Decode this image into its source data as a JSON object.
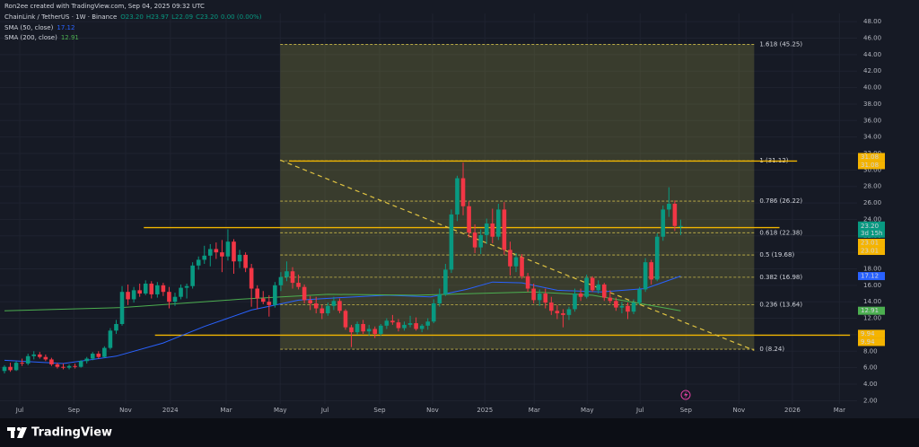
{
  "header": {
    "title": "Ron2ee created with TradingView.com, Sep 04, 2025 09:32 UTC"
  },
  "footer": {
    "brand": "TradingView"
  },
  "chart_data": {
    "type": "candlestick",
    "symbol": "ChainLink / TetherUS · 1W · Binance",
    "ohlc_legend": [
      "O23.20",
      "H23.97",
      "L22.09",
      "C23.20",
      "0.00 (0.00%)"
    ],
    "up_color": "#089981",
    "down_color": "#f23645",
    "xlim": [
      -0.76,
      145
    ],
    "xticks": [
      {
        "value": 2.6,
        "label": "Jul"
      },
      {
        "value": 11.8,
        "label": "Sep"
      },
      {
        "value": 20.6,
        "label": "Nov"
      },
      {
        "value": 28.2,
        "label": "2024"
      },
      {
        "value": 37.7,
        "label": "Mar"
      },
      {
        "value": 46.9,
        "label": "May"
      },
      {
        "value": 54.5,
        "label": "Jul"
      },
      {
        "value": 63.8,
        "label": "Sep"
      },
      {
        "value": 72.8,
        "label": "Nov"
      },
      {
        "value": 81.7,
        "label": "2025"
      },
      {
        "value": 90.1,
        "label": "Mar"
      },
      {
        "value": 99.1,
        "label": "May"
      },
      {
        "value": 108.1,
        "label": "Jul"
      },
      {
        "value": 115.9,
        "label": "Sep"
      },
      {
        "value": 124.9,
        "label": "Nov"
      },
      {
        "value": 134.0,
        "label": "2026"
      },
      {
        "value": 142.0,
        "label": "Mar"
      }
    ],
    "ylim": [
      1.6,
      49
    ],
    "yticks": [
      {
        "value": 2,
        "label": "2.00"
      },
      {
        "value": 4,
        "label": "4.00"
      },
      {
        "value": 6,
        "label": "6.00"
      },
      {
        "value": 8,
        "label": "8.00"
      },
      {
        "value": 10,
        "label": "10.00"
      },
      {
        "value": 12,
        "label": "12.00"
      },
      {
        "value": 14,
        "label": "14.00"
      },
      {
        "value": 16,
        "label": "16.00"
      },
      {
        "value": 18,
        "label": "18.00"
      },
      {
        "value": 20,
        "label": "20.00"
      },
      {
        "value": 22,
        "label": "22.00"
      },
      {
        "value": 24,
        "label": "24.00"
      },
      {
        "value": 26,
        "label": "26.00"
      },
      {
        "value": 28,
        "label": "28.00"
      },
      {
        "value": 30,
        "label": "30.00"
      },
      {
        "value": 32,
        "label": "32.00"
      },
      {
        "value": 34,
        "label": "34.00"
      },
      {
        "value": 36,
        "label": "36.00"
      },
      {
        "value": 38,
        "label": "38.00"
      },
      {
        "value": 40,
        "label": "40.00"
      },
      {
        "value": 42,
        "label": "42.00"
      },
      {
        "value": 44,
        "label": "44.00"
      },
      {
        "value": 46,
        "label": "46.00"
      },
      {
        "value": 48,
        "label": "48.00"
      }
    ],
    "grid": true,
    "candles": [
      [
        5.6,
        6.3,
        5.3,
        6.1
      ],
      [
        6.1,
        6.6,
        5.5,
        5.7
      ],
      [
        5.7,
        6.8,
        5.6,
        6.6
      ],
      [
        6.6,
        7.1,
        6.2,
        6.5
      ],
      [
        6.5,
        7.7,
        6.3,
        7.4
      ],
      [
        7.4,
        8.0,
        7.0,
        7.6
      ],
      [
        7.6,
        7.9,
        7.1,
        7.3
      ],
      [
        7.3,
        7.6,
        6.8,
        7.0
      ],
      [
        7.0,
        7.2,
        6.2,
        6.4
      ],
      [
        6.4,
        6.6,
        5.9,
        6.1
      ],
      [
        6.1,
        6.5,
        5.8,
        6.0
      ],
      [
        6.0,
        6.4,
        5.8,
        6.2
      ],
      [
        6.2,
        6.5,
        5.9,
        6.1
      ],
      [
        6.1,
        6.9,
        6.0,
        6.8
      ],
      [
        6.8,
        7.3,
        6.5,
        7.1
      ],
      [
        7.1,
        7.9,
        6.9,
        7.7
      ],
      [
        7.7,
        8.0,
        7.1,
        7.3
      ],
      [
        7.3,
        8.6,
        7.2,
        8.4
      ],
      [
        8.4,
        10.8,
        8.2,
        10.5
      ],
      [
        10.5,
        11.8,
        10.1,
        11.3
      ],
      [
        11.3,
        15.9,
        11.1,
        15.2
      ],
      [
        15.2,
        16.1,
        13.6,
        14.3
      ],
      [
        14.3,
        15.8,
        13.9,
        15.4
      ],
      [
        15.4,
        16.2,
        14.6,
        15.0
      ],
      [
        15.0,
        16.6,
        14.8,
        16.2
      ],
      [
        16.2,
        16.5,
        14.4,
        14.9
      ],
      [
        14.9,
        16.4,
        14.5,
        16.0
      ],
      [
        16.0,
        16.3,
        14.7,
        15.2
      ],
      [
        15.2,
        15.8,
        13.2,
        14.0
      ],
      [
        14.0,
        15.1,
        13.5,
        14.6
      ],
      [
        14.6,
        16.1,
        14.3,
        15.7
      ],
      [
        15.7,
        16.2,
        14.4,
        15.9
      ],
      [
        15.9,
        18.8,
        15.6,
        18.4
      ],
      [
        18.4,
        19.5,
        17.9,
        19.1
      ],
      [
        19.1,
        20.8,
        18.6,
        19.6
      ],
      [
        19.6,
        21.0,
        18.3,
        20.4
      ],
      [
        20.4,
        21.2,
        19.2,
        20.0
      ],
      [
        20.0,
        21.5,
        17.6,
        19.5
      ],
      [
        19.5,
        22.8,
        19.0,
        21.3
      ],
      [
        21.3,
        21.6,
        17.4,
        18.9
      ],
      [
        18.9,
        20.3,
        18.1,
        19.7
      ],
      [
        19.7,
        20.0,
        17.6,
        18.1
      ],
      [
        18.1,
        18.6,
        13.4,
        15.6
      ],
      [
        15.6,
        16.0,
        13.1,
        14.4
      ],
      [
        14.4,
        15.3,
        13.7,
        14.0
      ],
      [
        14.0,
        14.8,
        12.2,
        13.6
      ],
      [
        13.6,
        16.4,
        13.3,
        16.0
      ],
      [
        16.0,
        17.6,
        15.3,
        17.0
      ],
      [
        17.0,
        18.9,
        16.5,
        17.7
      ],
      [
        17.7,
        18.2,
        15.6,
        16.3
      ],
      [
        16.3,
        17.3,
        15.5,
        15.8
      ],
      [
        15.8,
        16.1,
        13.8,
        14.2
      ],
      [
        14.2,
        14.7,
        13.0,
        13.8
      ],
      [
        13.8,
        14.6,
        12.6,
        13.2
      ],
      [
        13.2,
        13.6,
        11.9,
        12.6
      ],
      [
        12.6,
        13.9,
        12.3,
        13.5
      ],
      [
        13.5,
        14.6,
        13.0,
        14.1
      ],
      [
        14.1,
        14.4,
        12.6,
        12.9
      ],
      [
        12.9,
        13.1,
        10.6,
        10.9
      ],
      [
        10.9,
        11.2,
        8.5,
        10.3
      ],
      [
        10.3,
        11.6,
        10.0,
        11.3
      ],
      [
        11.3,
        11.8,
        10.1,
        10.4
      ],
      [
        10.4,
        11.2,
        9.9,
        10.7
      ],
      [
        10.7,
        11.0,
        9.6,
        10.1
      ],
      [
        10.1,
        11.3,
        9.9,
        11.1
      ],
      [
        11.1,
        12.0,
        10.7,
        11.7
      ],
      [
        11.7,
        12.4,
        11.2,
        11.5
      ],
      [
        11.5,
        11.9,
        10.4,
        10.8
      ],
      [
        10.8,
        11.6,
        10.5,
        11.2
      ],
      [
        11.2,
        12.3,
        10.9,
        11.4
      ],
      [
        11.4,
        12.1,
        10.5,
        10.7
      ],
      [
        10.7,
        11.3,
        10.3,
        11.1
      ],
      [
        11.1,
        12.0,
        10.6,
        11.6
      ],
      [
        11.6,
        14.3,
        11.4,
        13.8
      ],
      [
        13.8,
        15.6,
        13.4,
        14.9
      ],
      [
        14.9,
        18.6,
        14.7,
        17.9
      ],
      [
        17.9,
        25.2,
        17.5,
        24.6
      ],
      [
        24.6,
        29.3,
        23.8,
        29.0
      ],
      [
        29.0,
        30.9,
        24.5,
        25.6
      ],
      [
        25.6,
        26.2,
        21.8,
        22.4
      ],
      [
        22.4,
        23.4,
        19.9,
        20.6
      ],
      [
        20.6,
        22.8,
        19.8,
        22.1
      ],
      [
        22.1,
        24.1,
        21.0,
        23.5
      ],
      [
        23.5,
        25.3,
        21.1,
        21.9
      ],
      [
        21.9,
        25.9,
        21.5,
        25.2
      ],
      [
        25.2,
        26.1,
        19.7,
        20.3
      ],
      [
        20.3,
        21.3,
        17.2,
        18.3
      ],
      [
        18.3,
        19.9,
        17.6,
        19.4
      ],
      [
        19.4,
        19.8,
        16.8,
        17.1
      ],
      [
        17.1,
        17.5,
        15.2,
        15.6
      ],
      [
        15.6,
        16.2,
        13.8,
        14.2
      ],
      [
        14.2,
        15.5,
        13.5,
        15.0
      ],
      [
        15.0,
        15.6,
        13.2,
        13.9
      ],
      [
        13.9,
        14.6,
        12.4,
        12.9
      ],
      [
        12.9,
        13.6,
        11.9,
        12.6
      ],
      [
        12.6,
        13.1,
        10.9,
        12.4
      ],
      [
        12.4,
        13.4,
        11.8,
        13.1
      ],
      [
        13.1,
        15.6,
        12.8,
        15.0
      ],
      [
        15.0,
        15.6,
        14.1,
        14.6
      ],
      [
        14.6,
        17.3,
        14.4,
        16.9
      ],
      [
        16.9,
        17.1,
        15.2,
        15.4
      ],
      [
        15.4,
        16.6,
        15.0,
        16.1
      ],
      [
        16.1,
        16.3,
        14.1,
        14.5
      ],
      [
        14.5,
        15.4,
        13.8,
        14.1
      ],
      [
        14.1,
        14.5,
        12.9,
        13.3
      ],
      [
        13.3,
        14.0,
        12.6,
        13.5
      ],
      [
        13.5,
        13.9,
        11.9,
        12.8
      ],
      [
        12.8,
        14.3,
        12.5,
        13.9
      ],
      [
        13.9,
        15.8,
        13.6,
        15.5
      ],
      [
        15.5,
        19.3,
        15.2,
        18.8
      ],
      [
        18.8,
        19.1,
        16.1,
        16.7
      ],
      [
        16.7,
        22.3,
        16.5,
        21.9
      ],
      [
        21.9,
        25.7,
        21.4,
        25.2
      ],
      [
        25.2,
        27.9,
        24.3,
        25.9
      ],
      [
        25.9,
        26.3,
        22.6,
        23.2
      ],
      [
        23.2,
        23.97,
        22.09,
        23.2
      ]
    ],
    "sma": [
      {
        "name": "SMA (50, close)",
        "color": "#2962ff",
        "x": [
          0,
          10,
          19,
          27,
          34,
          42,
          50,
          57,
          65,
          72.5,
          78.6,
          83,
          88,
          94,
          101.5,
          109,
          115
        ],
        "values": [
          6.9,
          6.5,
          7.4,
          9.0,
          11.0,
          13.0,
          14.2,
          14.5,
          14.8,
          14.6,
          15.5,
          16.4,
          16.3,
          15.4,
          15.2,
          15.6,
          17.12
        ]
      },
      {
        "name": "SMA (200, close)",
        "color": "#4caf50",
        "x": [
          0,
          20,
          40,
          55,
          70,
          80,
          90,
          100,
          108,
          115
        ],
        "values": [
          12.9,
          13.3,
          14.3,
          14.9,
          14.8,
          15.0,
          15.2,
          14.8,
          13.8,
          12.91
        ]
      }
    ],
    "last_price": {
      "value": 23.2,
      "label": "23.20",
      "countdown": "3d 15h"
    },
    "levels": [
      {
        "value": 31.08,
        "x": [
          48.4,
          134.8
        ]
      },
      {
        "value": 23.01,
        "x": [
          23.7,
          131.8
        ]
      },
      {
        "value": 9.94,
        "x": [
          25.6,
          143.8
        ]
      }
    ],
    "trendline": {
      "x": [
        46.9,
        127.5
      ],
      "y": [
        31.2,
        8.1
      ]
    },
    "fib": {
      "x": [
        46.9,
        127.5
      ],
      "levels": [
        {
          "value": 45.25,
          "label": "1.618 (45.25)"
        },
        {
          "value": 31.12,
          "label": "1 (31.12)"
        },
        {
          "value": 26.22,
          "label": "0.786 (26.22)"
        },
        {
          "value": 22.38,
          "label": "0.618 (22.38)"
        },
        {
          "value": 19.68,
          "label": "0.5 (19.68)"
        },
        {
          "value": 16.98,
          "label": "0.382 (16.98)"
        },
        {
          "value": 13.64,
          "label": "0.236 (13.64)"
        },
        {
          "value": 8.24,
          "label": "0 (8.24)"
        }
      ]
    }
  }
}
